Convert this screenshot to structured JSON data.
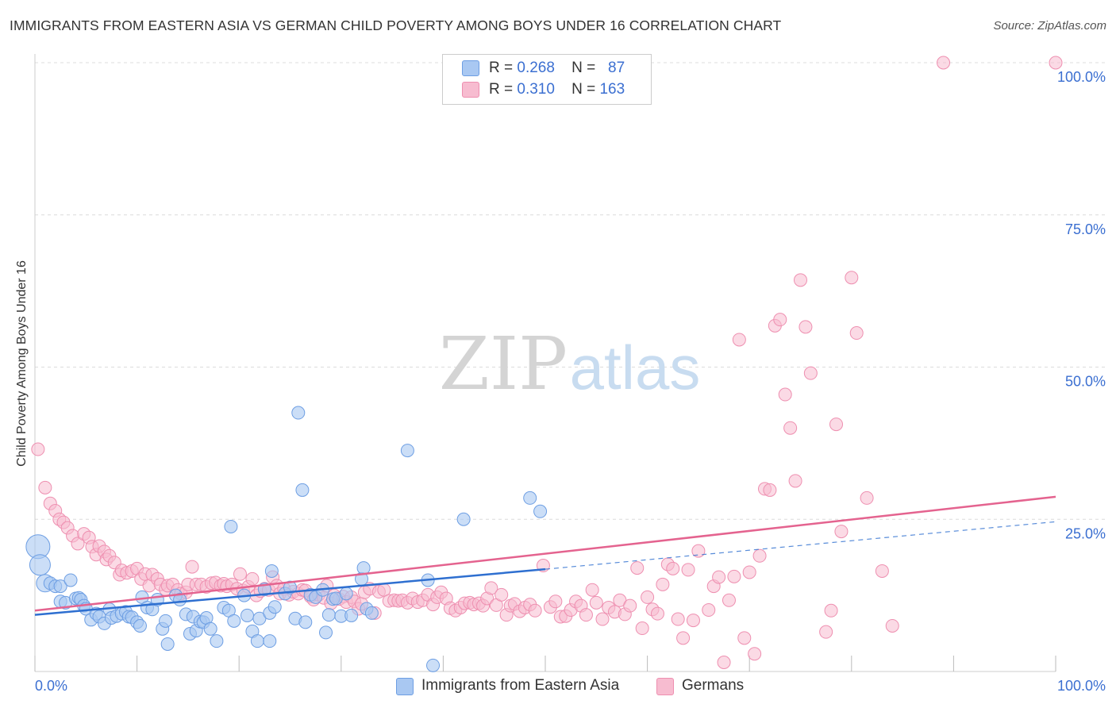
{
  "header": {
    "title": "IMMIGRANTS FROM EASTERN ASIA VS GERMAN CHILD POVERTY AMONG BOYS UNDER 16 CORRELATION CHART",
    "source": "Source: ZipAtlas.com"
  },
  "watermark": {
    "part1": "ZIP",
    "part2": "atlas"
  },
  "legend": {
    "series1": {
      "r_label": "R =",
      "r_value": "0.268",
      "n_label": "N =",
      "n_value": "87"
    },
    "series2": {
      "r_label": "R =",
      "r_value": "0.310",
      "n_label": "N =",
      "n_value": "163"
    }
  },
  "colors": {
    "blue_fill": "#a9c8f2",
    "blue_stroke": "#6d9ee3",
    "blue_line": "#2e6fd0",
    "pink_fill": "#f7bcd0",
    "pink_stroke": "#ee8fb0",
    "pink_line": "#e4638f",
    "tick_text": "#3b6fd1",
    "grid": "#dcdcdc"
  },
  "chart_data": {
    "type": "scatter",
    "title": "IMMIGRANTS FROM EASTERN ASIA VS GERMAN CHILD POVERTY AMONG BOYS UNDER 16 CORRELATION CHART",
    "xlabel": "",
    "ylabel": "Child Poverty Among Boys Under 16",
    "xlim": [
      0,
      100
    ],
    "ylim": [
      0,
      100
    ],
    "x_tick_labels": [
      "0.0%",
      "100.0%"
    ],
    "y_ticks": [
      25,
      50,
      75,
      100
    ],
    "y_tick_labels": [
      "25.0%",
      "50.0%",
      "75.0%",
      "100.0%"
    ],
    "grid": true,
    "legend_position": "top-center",
    "series": [
      {
        "name": "Immigrants from Eastern Asia",
        "color": "#a9c8f2",
        "R": 0.268,
        "N": 87,
        "trend": {
          "x": [
            0,
            50
          ],
          "y": [
            9.3,
            16.8
          ]
        },
        "trend_dashed": {
          "x": [
            50,
            100
          ],
          "y": [
            16.8,
            24.6
          ]
        },
        "points": [
          [
            0.3,
            20.5
          ],
          [
            0.5,
            17.5
          ],
          [
            1.0,
            14.5
          ],
          [
            1.5,
            14.5
          ],
          [
            2.0,
            14.0
          ],
          [
            2.5,
            14.0
          ],
          [
            2.5,
            11.5
          ],
          [
            3.0,
            11.3
          ],
          [
            3.5,
            15.0
          ],
          [
            4.0,
            12.0
          ],
          [
            4.3,
            12.1
          ],
          [
            4.5,
            11.8
          ],
          [
            4.8,
            10.8
          ],
          [
            5.0,
            10.3
          ],
          [
            5.5,
            8.5
          ],
          [
            6.0,
            9.5
          ],
          [
            6.3,
            9.0
          ],
          [
            6.8,
            7.9
          ],
          [
            7.3,
            10.2
          ],
          [
            7.5,
            8.8
          ],
          [
            8.0,
            9.1
          ],
          [
            8.5,
            9.5
          ],
          [
            8.9,
            9.8
          ],
          [
            9.2,
            9.0
          ],
          [
            9.5,
            8.9
          ],
          [
            10.0,
            8.1
          ],
          [
            10.3,
            7.5
          ],
          [
            10.5,
            12.2
          ],
          [
            11.0,
            10.5
          ],
          [
            11.5,
            10.2
          ],
          [
            12.0,
            11.8
          ],
          [
            12.5,
            7.0
          ],
          [
            12.8,
            8.3
          ],
          [
            13.0,
            4.5
          ],
          [
            13.8,
            12.5
          ],
          [
            14.2,
            11.8
          ],
          [
            14.8,
            9.4
          ],
          [
            15.2,
            6.2
          ],
          [
            15.5,
            9.0
          ],
          [
            15.8,
            6.7
          ],
          [
            16.2,
            8.2
          ],
          [
            16.5,
            8.1
          ],
          [
            16.8,
            8.8
          ],
          [
            17.2,
            7.0
          ],
          [
            17.8,
            5.0
          ],
          [
            18.5,
            10.5
          ],
          [
            19.0,
            10.0
          ],
          [
            19.2,
            23.8
          ],
          [
            19.5,
            8.3
          ],
          [
            20.5,
            12.5
          ],
          [
            20.8,
            9.2
          ],
          [
            21.3,
            6.6
          ],
          [
            21.8,
            5.0
          ],
          [
            22.0,
            8.7
          ],
          [
            22.5,
            13.5
          ],
          [
            23.0,
            9.6
          ],
          [
            23.0,
            5.0
          ],
          [
            23.2,
            16.5
          ],
          [
            23.5,
            10.6
          ],
          [
            24.5,
            12.8
          ],
          [
            25.0,
            13.8
          ],
          [
            25.5,
            8.7
          ],
          [
            25.8,
            42.5
          ],
          [
            26.2,
            29.8
          ],
          [
            26.5,
            8.1
          ],
          [
            27.0,
            12.6
          ],
          [
            27.5,
            12.2
          ],
          [
            28.2,
            13.4
          ],
          [
            28.5,
            6.4
          ],
          [
            28.8,
            9.3
          ],
          [
            29.2,
            11.9
          ],
          [
            29.5,
            12.0
          ],
          [
            30.0,
            9.1
          ],
          [
            30.5,
            12.8
          ],
          [
            31.0,
            9.2
          ],
          [
            32.0,
            15.2
          ],
          [
            32.2,
            17.0
          ],
          [
            32.5,
            10.3
          ],
          [
            33.0,
            9.6
          ],
          [
            36.5,
            36.3
          ],
          [
            38.5,
            15.0
          ],
          [
            39.0,
            1.0
          ],
          [
            42.0,
            25.0
          ],
          [
            48.5,
            28.5
          ],
          [
            49.5,
            26.3
          ]
        ],
        "large_points": [
          [
            0.3,
            20.5
          ],
          [
            0.5,
            17.5
          ],
          [
            1.0,
            14.5
          ]
        ]
      },
      {
        "name": "Germans",
        "color": "#f7bcd0",
        "R": 0.31,
        "N": 163,
        "trend": {
          "x": [
            0,
            100
          ],
          "y": [
            10.0,
            28.7
          ]
        },
        "points": [
          [
            0.3,
            36.5
          ],
          [
            1.0,
            30.2
          ],
          [
            1.5,
            27.6
          ],
          [
            2.0,
            26.4
          ],
          [
            2.4,
            25.0
          ],
          [
            2.8,
            24.5
          ],
          [
            3.2,
            23.6
          ],
          [
            3.7,
            22.3
          ],
          [
            4.2,
            21.0
          ],
          [
            4.8,
            22.6
          ],
          [
            5.3,
            22.0
          ],
          [
            5.6,
            20.5
          ],
          [
            6.0,
            19.2
          ],
          [
            6.3,
            20.6
          ],
          [
            6.8,
            19.7
          ],
          [
            7.0,
            18.4
          ],
          [
            7.3,
            19.0
          ],
          [
            7.8,
            17.9
          ],
          [
            8.3,
            15.9
          ],
          [
            8.5,
            16.6
          ],
          [
            9.0,
            16.2
          ],
          [
            9.5,
            16.5
          ],
          [
            10.0,
            16.9
          ],
          [
            10.4,
            15.2
          ],
          [
            10.8,
            16.0
          ],
          [
            11.2,
            14.1
          ],
          [
            11.5,
            15.9
          ],
          [
            12.0,
            15.2
          ],
          [
            12.3,
            14.3
          ],
          [
            12.8,
            13.5
          ],
          [
            13.0,
            14.1
          ],
          [
            13.5,
            14.3
          ],
          [
            14.0,
            13.4
          ],
          [
            14.3,
            12.8
          ],
          [
            14.8,
            13.0
          ],
          [
            15.0,
            14.3
          ],
          [
            15.4,
            17.2
          ],
          [
            15.8,
            14.3
          ],
          [
            16.3,
            14.3
          ],
          [
            16.8,
            13.9
          ],
          [
            17.3,
            14.5
          ],
          [
            17.7,
            14.6
          ],
          [
            18.2,
            14.1
          ],
          [
            18.5,
            14.4
          ],
          [
            18.8,
            14.0
          ],
          [
            19.3,
            14.3
          ],
          [
            19.8,
            13.6
          ],
          [
            20.1,
            16.0
          ],
          [
            20.4,
            13.3
          ],
          [
            20.9,
            13.9
          ],
          [
            21.3,
            15.2
          ],
          [
            21.7,
            12.5
          ],
          [
            22.1,
            13.2
          ],
          [
            22.5,
            13.6
          ],
          [
            22.9,
            13.4
          ],
          [
            23.3,
            15.5
          ],
          [
            23.7,
            14.1
          ],
          [
            24.0,
            12.8
          ],
          [
            24.4,
            13.6
          ],
          [
            24.9,
            12.6
          ],
          [
            25.3,
            13.1
          ],
          [
            25.8,
            12.8
          ],
          [
            26.2,
            13.4
          ],
          [
            26.5,
            13.3
          ],
          [
            27.0,
            12.3
          ],
          [
            27.3,
            11.8
          ],
          [
            27.8,
            12.6
          ],
          [
            28.3,
            12.1
          ],
          [
            28.6,
            14.1
          ],
          [
            29.0,
            11.2
          ],
          [
            29.3,
            12.5
          ],
          [
            29.8,
            11.9
          ],
          [
            30.2,
            12.3
          ],
          [
            30.5,
            11.4
          ],
          [
            31.0,
            12.2
          ],
          [
            31.3,
            11.5
          ],
          [
            31.7,
            10.3
          ],
          [
            32.0,
            11.1
          ],
          [
            32.3,
            13.0
          ],
          [
            32.8,
            13.6
          ],
          [
            33.3,
            9.6
          ],
          [
            33.7,
            13.1
          ],
          [
            34.2,
            13.4
          ],
          [
            34.7,
            11.6
          ],
          [
            35.2,
            11.7
          ],
          [
            35.6,
            11.6
          ],
          [
            36.0,
            11.7
          ],
          [
            36.5,
            11.3
          ],
          [
            37.0,
            12.0
          ],
          [
            37.5,
            11.4
          ],
          [
            38.0,
            11.7
          ],
          [
            38.5,
            12.6
          ],
          [
            39.0,
            11.0
          ],
          [
            39.4,
            12.2
          ],
          [
            39.8,
            13.0
          ],
          [
            40.3,
            12.0
          ],
          [
            40.7,
            10.4
          ],
          [
            41.2,
            10.0
          ],
          [
            41.7,
            10.5
          ],
          [
            42.1,
            11.2
          ],
          [
            42.6,
            11.3
          ],
          [
            43.0,
            11.0
          ],
          [
            43.5,
            11.2
          ],
          [
            43.9,
            10.8
          ],
          [
            44.3,
            12.0
          ],
          [
            44.7,
            13.7
          ],
          [
            45.2,
            10.9
          ],
          [
            45.7,
            12.6
          ],
          [
            46.2,
            9.3
          ],
          [
            46.6,
            10.8
          ],
          [
            47.0,
            11.1
          ],
          [
            47.5,
            9.9
          ],
          [
            48.0,
            10.5
          ],
          [
            48.5,
            11.0
          ],
          [
            49.0,
            10.0
          ],
          [
            49.8,
            17.4
          ],
          [
            50.5,
            10.6
          ],
          [
            51.0,
            11.5
          ],
          [
            51.5,
            9.0
          ],
          [
            52.0,
            9.1
          ],
          [
            52.5,
            10.1
          ],
          [
            53.0,
            11.5
          ],
          [
            53.5,
            10.8
          ],
          [
            54.0,
            9.3
          ],
          [
            54.6,
            13.4
          ],
          [
            55.0,
            11.3
          ],
          [
            55.6,
            8.6
          ],
          [
            56.2,
            10.5
          ],
          [
            56.8,
            9.8
          ],
          [
            57.3,
            11.7
          ],
          [
            57.8,
            9.4
          ],
          [
            58.3,
            10.8
          ],
          [
            59.0,
            17.0
          ],
          [
            59.5,
            7.1
          ],
          [
            60.0,
            12.2
          ],
          [
            60.5,
            10.2
          ],
          [
            61.0,
            9.5
          ],
          [
            61.5,
            14.3
          ],
          [
            62.0,
            17.6
          ],
          [
            62.5,
            16.9
          ],
          [
            63.0,
            8.6
          ],
          [
            63.5,
            5.5
          ],
          [
            64.0,
            16.7
          ],
          [
            64.5,
            8.4
          ],
          [
            65.0,
            19.8
          ],
          [
            66.0,
            10.1
          ],
          [
            66.5,
            14.0
          ],
          [
            67.0,
            15.5
          ],
          [
            67.5,
            1.5
          ],
          [
            68.0,
            11.7
          ],
          [
            68.5,
            15.6
          ],
          [
            69.0,
            54.5
          ],
          [
            69.5,
            5.5
          ],
          [
            70.0,
            16.3
          ],
          [
            70.5,
            2.9
          ],
          [
            71.0,
            19.0
          ],
          [
            71.5,
            30.0
          ],
          [
            72.0,
            29.8
          ],
          [
            72.5,
            56.8
          ],
          [
            73.0,
            57.8
          ],
          [
            73.5,
            45.5
          ],
          [
            74.0,
            40.0
          ],
          [
            74.5,
            31.3
          ],
          [
            75.0,
            64.3
          ],
          [
            75.5,
            56.6
          ],
          [
            76.0,
            49.0
          ],
          [
            77.5,
            6.5
          ],
          [
            78.0,
            10.0
          ],
          [
            78.5,
            40.6
          ],
          [
            79.0,
            23.0
          ],
          [
            80.0,
            64.7
          ],
          [
            80.5,
            55.6
          ],
          [
            81.5,
            28.5
          ],
          [
            83.0,
            16.5
          ],
          [
            84.0,
            7.5
          ],
          [
            89.0,
            100.0
          ],
          [
            100.0,
            100.0
          ]
        ]
      }
    ]
  },
  "bottom_legend": {
    "item1": "Immigrants from Eastern Asia",
    "item2": "Germans"
  }
}
